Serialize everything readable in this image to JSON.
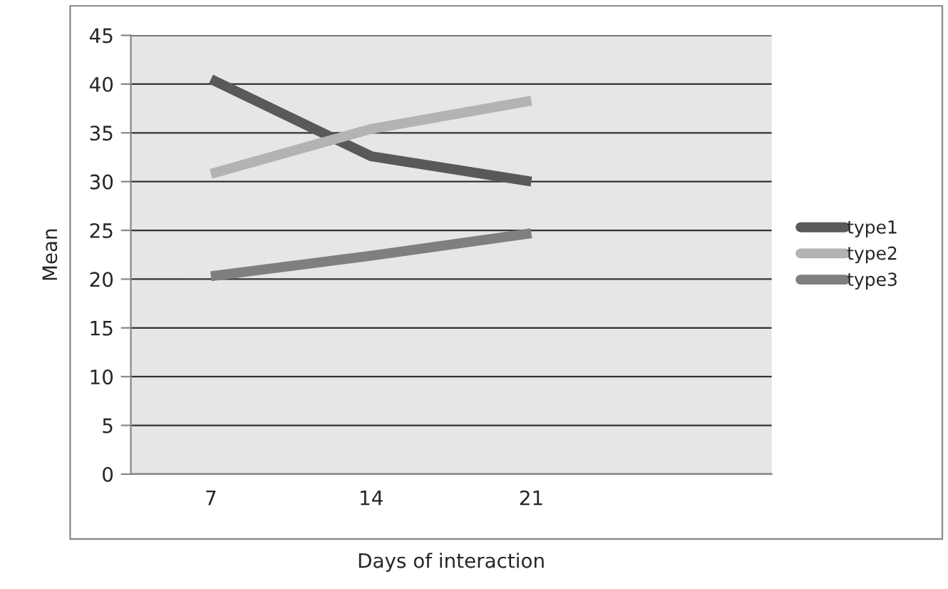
{
  "chart_data": {
    "type": "line",
    "xlabel": "Days of interaction",
    "ylabel": "Mean",
    "categories": [
      "7",
      "14",
      "21",
      null
    ],
    "series": [
      {
        "name": "type1",
        "color": "#595959",
        "values": [
          40.5,
          32.6,
          30.0,
          null
        ]
      },
      {
        "name": "type2",
        "color": "#b3b3b3",
        "values": [
          30.8,
          35.4,
          38.3,
          null
        ]
      },
      {
        "name": "type3",
        "color": "#7f7f7f",
        "values": [
          20.3,
          22.4,
          24.7,
          null
        ]
      }
    ],
    "ylim": [
      0,
      45
    ],
    "yticks": [
      0,
      5,
      10,
      15,
      20,
      25,
      30,
      35,
      40,
      45
    ],
    "grid": "y",
    "legend": "right",
    "marker": "none",
    "line_style": "solid"
  }
}
